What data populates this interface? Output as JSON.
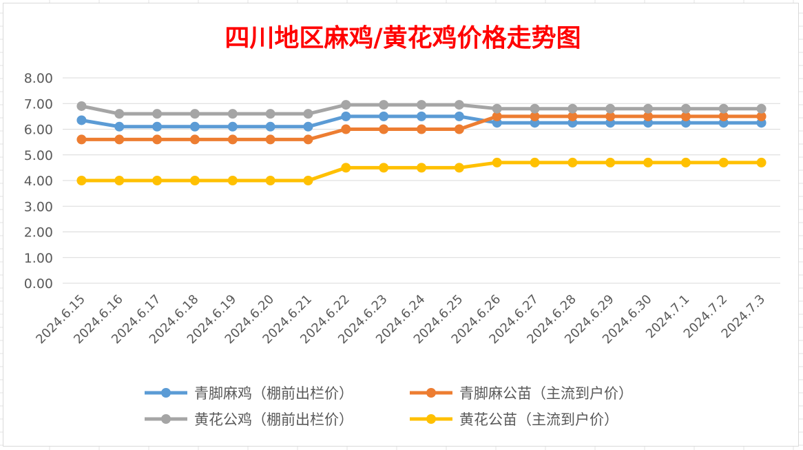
{
  "chart_data": {
    "type": "line",
    "title": "四川地区麻鸡/黄花鸡价格走势图",
    "xlabel": "",
    "ylabel": "",
    "categories": [
      "2024.6.15",
      "2024.6.16",
      "2024.6.17",
      "2024.6.18",
      "2024.6.19",
      "2024.6.20",
      "2024.6.21",
      "2024.6.22",
      "2024.6.23",
      "2024.6.24",
      "2024.6.25",
      "2024.6.26",
      "2024.6.27",
      "2024.6.28",
      "2024.6.29",
      "2024.6.30",
      "2024.7.1",
      "2024.7.2",
      "2024.7.3"
    ],
    "ylim": [
      0,
      8
    ],
    "yticks": [
      "0.00",
      "1.00",
      "2.00",
      "3.00",
      "4.00",
      "5.00",
      "6.00",
      "7.00",
      "8.00"
    ],
    "grid": true,
    "legend_position": "bottom",
    "series": [
      {
        "name": "青脚麻鸡（棚前出栏价）",
        "color": "#5B9BD5",
        "values": [
          6.35,
          6.1,
          6.1,
          6.1,
          6.1,
          6.1,
          6.1,
          6.5,
          6.5,
          6.5,
          6.5,
          6.25,
          6.25,
          6.25,
          6.25,
          6.25,
          6.25,
          6.25,
          6.25
        ]
      },
      {
        "name": "青脚麻公苗（主流到户价）",
        "color": "#ED7D31",
        "values": [
          5.6,
          5.6,
          5.6,
          5.6,
          5.6,
          5.6,
          5.6,
          6.0,
          6.0,
          6.0,
          6.0,
          6.5,
          6.5,
          6.5,
          6.5,
          6.5,
          6.5,
          6.5,
          6.5
        ]
      },
      {
        "name": "黄花公鸡（棚前出栏价）",
        "color": "#A5A5A5",
        "values": [
          6.9,
          6.6,
          6.6,
          6.6,
          6.6,
          6.6,
          6.6,
          6.95,
          6.95,
          6.95,
          6.95,
          6.8,
          6.8,
          6.8,
          6.8,
          6.8,
          6.8,
          6.8,
          6.8
        ]
      },
      {
        "name": "黄花公苗（主流到户价）",
        "color": "#FFC000",
        "values": [
          4.0,
          4.0,
          4.0,
          4.0,
          4.0,
          4.0,
          4.0,
          4.5,
          4.5,
          4.5,
          4.5,
          4.7,
          4.7,
          4.7,
          4.7,
          4.7,
          4.7,
          4.7,
          4.7
        ]
      }
    ],
    "colors": {
      "title": "#FF0000",
      "axis_text": "#595959",
      "gridline": "#D9D9D9"
    }
  }
}
